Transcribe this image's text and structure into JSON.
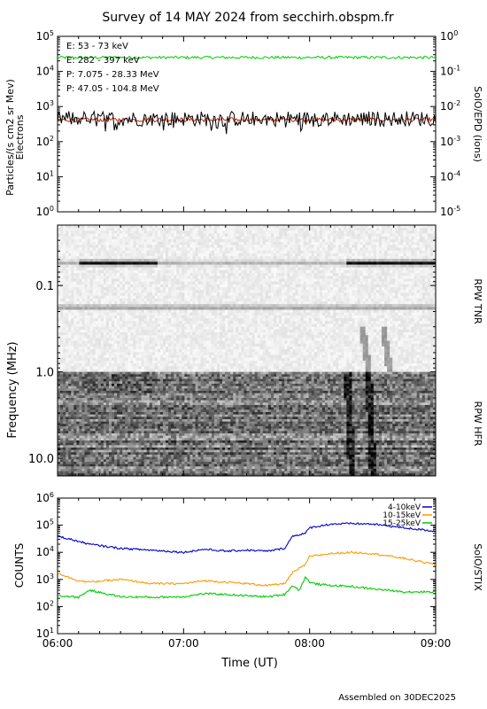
{
  "title": "Survey of 14 MAY 2024 from secchirh.obspm.fr",
  "footer": "Assembled on 30DEC2025",
  "chart_data": [
    {
      "type": "line",
      "panel": "particles",
      "ylabel": "Particles/(s cm2 sr Mev)",
      "ylabel2": "Electrons",
      "right_label": "SolO/EPD (ions)",
      "yscale": "log",
      "ylim": [
        1,
        100000
      ],
      "y_ticks": [
        "10^0",
        "10^1",
        "10^2",
        "10^3",
        "10^4",
        "10^5"
      ],
      "y2lim": [
        1e-05,
        1
      ],
      "y2_ticks": [
        "10^-5",
        "10^-4",
        "10^-3",
        "10^-2",
        "10^-1",
        "10^0"
      ],
      "xlim": [
        "06:00",
        "09:00"
      ],
      "series": [
        {
          "name": "E: 53 - 73 keV",
          "color": "#00cc00",
          "level": 25000,
          "scatter_dex": 0.04
        },
        {
          "name": "E: 282 - 397 keV",
          "color": "#cc2200",
          "level": 420,
          "scatter_dex": 0.06
        },
        {
          "name": "P: 7.075 - 28.33 MeV",
          "color": "#000000",
          "level": 450,
          "scatter_dex": 0.22
        },
        {
          "name": "P: 47.05 - 104.8 MeV",
          "color": "#0000cc",
          "level": null,
          "scatter_dex": 0
        }
      ]
    },
    {
      "type": "heatmap",
      "panel": "spectrogram",
      "ylabel": "Frequency (MHz)",
      "yscale": "log",
      "y_ticks": [
        "0.1",
        "1.0",
        "10.0"
      ],
      "ylim": [
        0.02,
        16
      ],
      "xlim": [
        "06:00",
        "09:00"
      ],
      "instruments": [
        {
          "name": "RPW TNR",
          "range_mhz": [
            0.02,
            1.0
          ]
        },
        {
          "name": "RPW HFR",
          "range_mhz": [
            1.0,
            16
          ]
        }
      ],
      "features": [
        {
          "name": "dark band",
          "freq_mhz": 0.055,
          "start": "06:10",
          "end": "06:48"
        },
        {
          "name": "dark band",
          "freq_mhz": 0.055,
          "start": "08:18",
          "end": "09:00"
        },
        {
          "name": "faint band",
          "freq_mhz": 0.18,
          "start": "06:00",
          "end": "09:00"
        },
        {
          "name": "type III burst",
          "time": "08:18"
        },
        {
          "name": "type III burst",
          "time": "08:28"
        }
      ]
    },
    {
      "type": "line",
      "panel": "stix",
      "ylabel": "COUNTS",
      "right_label": "SolO/STIX",
      "xlabel": "Time (UT)",
      "yscale": "log",
      "ylim": [
        1,
        1000000
      ],
      "y_ticks": [
        "10^1",
        "10^2",
        "10^3",
        "10^4",
        "10^5",
        "10^6"
      ],
      "x_ticks": [
        "06:00",
        "07:00",
        "08:00",
        "09:00"
      ],
      "xlim": [
        "06:00",
        "09:00"
      ],
      "series": [
        {
          "name": "4-10keV",
          "color": "#0000cc",
          "x": [
            "06:00",
            "06:15",
            "06:30",
            "06:45",
            "07:00",
            "07:10",
            "07:20",
            "07:30",
            "07:40",
            "07:48",
            "07:52",
            "07:58",
            "08:00",
            "08:10",
            "08:20",
            "08:30",
            "08:45",
            "09:00"
          ],
          "y": [
            40000,
            20000,
            14000,
            12000,
            10000,
            13000,
            11000,
            12000,
            11000,
            14000,
            40000,
            50000,
            80000,
            110000,
            115000,
            110000,
            80000,
            60000
          ]
        },
        {
          "name": "10-15keV",
          "color": "#ff9900",
          "x": [
            "06:00",
            "06:05",
            "06:10",
            "06:15",
            "06:30",
            "06:45",
            "07:00",
            "07:10",
            "07:20",
            "07:30",
            "07:40",
            "07:48",
            "07:52",
            "07:55",
            "07:58",
            "08:00",
            "08:10",
            "08:20",
            "08:30",
            "08:45",
            "09:00"
          ],
          "y": [
            1800,
            1200,
            900,
            800,
            1000,
            700,
            700,
            900,
            800,
            700,
            600,
            700,
            1800,
            2500,
            3500,
            7000,
            9000,
            10000,
            9000,
            6000,
            3500
          ]
        },
        {
          "name": "15-25keV",
          "color": "#00cc00",
          "x": [
            "06:00",
            "06:10",
            "06:15",
            "06:30",
            "06:45",
            "07:00",
            "07:10",
            "07:20",
            "07:30",
            "07:40",
            "07:48",
            "07:52",
            "07:55",
            "07:58",
            "08:00",
            "08:02",
            "08:10",
            "08:20",
            "08:30",
            "08:45",
            "09:00"
          ],
          "y": [
            250,
            220,
            400,
            230,
            220,
            230,
            300,
            280,
            250,
            230,
            280,
            600,
            400,
            1200,
            800,
            700,
            600,
            550,
            450,
            350,
            350
          ]
        }
      ]
    }
  ]
}
